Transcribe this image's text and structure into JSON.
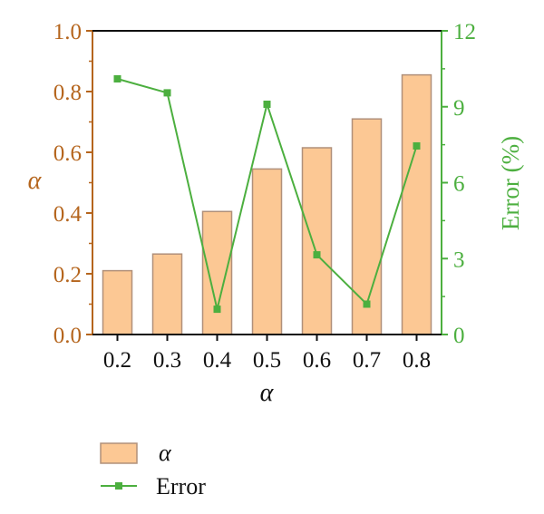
{
  "chart_data": {
    "type": "bar",
    "x": [
      "0.2",
      "0.3",
      "0.4",
      "0.5",
      "0.6",
      "0.7",
      "0.8"
    ],
    "xlabel": "α",
    "ylabel_left": "α",
    "ylabel_right": "Error (%)",
    "ylim_left": [
      0.0,
      1.0
    ],
    "ylim_right": [
      0,
      12
    ],
    "yticks_left": [
      "0.0",
      "0.2",
      "0.4",
      "0.6",
      "0.8",
      "1.0"
    ],
    "yticks_right": [
      "0",
      "3",
      "6",
      "9",
      "12"
    ],
    "series": [
      {
        "name": "α",
        "type": "bar",
        "axis": "left",
        "values": [
          0.21,
          0.265,
          0.405,
          0.545,
          0.615,
          0.71,
          0.855
        ]
      },
      {
        "name": "Error",
        "type": "line",
        "axis": "right",
        "values": [
          10.1,
          9.55,
          1.0,
          9.1,
          3.15,
          1.2,
          7.45
        ]
      }
    ],
    "legend": "bottom",
    "grid": false,
    "colors": {
      "bar_fill": "#fcc894",
      "bar_stroke": "#b0907a",
      "line": "#4caf3f",
      "left_axis": "#b5651d",
      "right_axis": "#4caf3f"
    }
  }
}
